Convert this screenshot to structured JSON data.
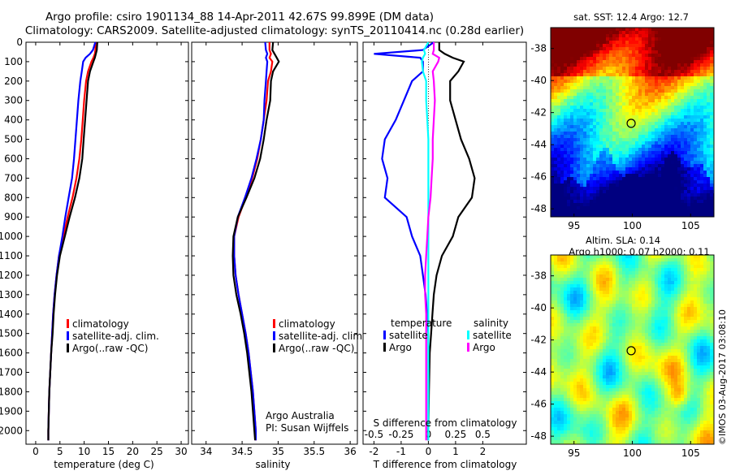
{
  "title": {
    "line1": "Argo profile: csiro 1901134_88 14-Apr-2011 42.67S 99.899E (DM data)",
    "line2": "Climatology: CARS2009. Satellite-adjusted climatology: synTS_20110414.nc (0.28d earlier)"
  },
  "chart_data": [
    {
      "type": "line",
      "id": "temperature",
      "xlabel": "temperature (deg C)",
      "ylabel": "",
      "xlim": [
        -2,
        31.5
      ],
      "ylim": [
        2070,
        0
      ],
      "xticks": [
        0,
        5,
        10,
        15,
        20,
        25,
        30
      ],
      "yticks": [
        0,
        100,
        200,
        300,
        400,
        500,
        600,
        700,
        800,
        900,
        1000,
        1100,
        1200,
        1300,
        1400,
        1500,
        1600,
        1700,
        1800,
        1900,
        2000
      ],
      "depth": [
        0,
        40,
        60,
        80,
        100,
        150,
        200,
        300,
        400,
        500,
        600,
        700,
        800,
        900,
        1000,
        1100,
        1200,
        1300,
        1400,
        1500,
        1600,
        1800,
        2000,
        2050
      ],
      "legend": [
        "climatology",
        "satellite-adj. clim.",
        "Argo(..raw -QC)"
      ],
      "legend_position": "lower-right",
      "series": [
        {
          "name": "climatology",
          "color": "#ff0000",
          "values": [
            12.4,
            12.3,
            12.2,
            11.9,
            11.5,
            10.8,
            10.4,
            10.0,
            9.7,
            9.4,
            9.0,
            8.4,
            7.6,
            6.6,
            5.7,
            4.8,
            4.3,
            3.9,
            3.6,
            3.4,
            3.2,
            2.8,
            2.6,
            2.6
          ]
        },
        {
          "name": "satellite-adj. clim.",
          "color": "#0000ff",
          "values": [
            12.3,
            11.8,
            11.2,
            10.3,
            9.8,
            9.5,
            9.2,
            8.8,
            8.5,
            8.2,
            7.9,
            7.5,
            6.8,
            6.1,
            5.5,
            4.8,
            4.3,
            3.9,
            3.6,
            3.4,
            3.2,
            2.8,
            2.6,
            2.6
          ]
        },
        {
          "name": "Argo(..raw -QC)",
          "color": "#000000",
          "values": [
            12.7,
            12.6,
            12.4,
            12.2,
            11.9,
            11.2,
            10.8,
            10.5,
            10.2,
            9.9,
            9.6,
            9.0,
            8.1,
            7.0,
            6.0,
            5.0,
            4.4,
            4.0,
            3.7,
            3.5,
            3.2,
            2.8,
            2.6,
            2.6
          ]
        }
      ]
    },
    {
      "type": "line",
      "id": "salinity",
      "xlabel": "salinity",
      "ylabel": "",
      "xlim": [
        33.8,
        36.1
      ],
      "ylim": [
        2070,
        0
      ],
      "xticks": [
        34,
        34.5,
        35,
        35.5,
        36
      ],
      "depth": [
        0,
        40,
        60,
        80,
        100,
        150,
        200,
        300,
        400,
        500,
        600,
        700,
        800,
        900,
        1000,
        1100,
        1200,
        1300,
        1400,
        1500,
        1600,
        1800,
        2000,
        2050
      ],
      "legend": [
        "climatology",
        "satellite-adj. clim.",
        "Argo(..raw -QC)"
      ],
      "legend_position": "lower-right",
      "annotation": [
        "Argo Australia",
        "PI: Susan Wijffels"
      ],
      "series": [
        {
          "name": "climatology",
          "color": "#ff0000",
          "values": [
            34.88,
            34.88,
            34.9,
            34.88,
            34.92,
            34.9,
            34.86,
            34.84,
            34.8,
            34.76,
            34.71,
            34.64,
            34.55,
            34.45,
            34.39,
            34.39,
            34.41,
            34.45,
            34.5,
            34.55,
            34.59,
            34.65,
            34.69,
            34.69
          ]
        },
        {
          "name": "satellite-adj. clim.",
          "color": "#0000ff",
          "values": [
            34.82,
            34.83,
            34.85,
            34.83,
            34.85,
            34.84,
            34.83,
            34.81,
            34.8,
            34.76,
            34.7,
            34.63,
            34.54,
            34.44,
            34.39,
            34.39,
            34.41,
            34.45,
            34.5,
            34.55,
            34.59,
            34.65,
            34.69,
            34.69
          ]
        },
        {
          "name": "Argo(..raw -QC)",
          "color": "#000000",
          "values": [
            34.93,
            34.92,
            34.95,
            34.98,
            35.01,
            34.93,
            34.9,
            34.89,
            34.84,
            34.8,
            34.75,
            34.67,
            34.56,
            34.44,
            34.38,
            34.37,
            34.38,
            34.42,
            34.48,
            34.53,
            34.57,
            34.63,
            34.67,
            34.68
          ]
        }
      ]
    },
    {
      "type": "line",
      "id": "difference",
      "xlabel": "T difference from climatology",
      "xlabel_top": "S difference from climatology",
      "xlim": [
        -2.4,
        3.6
      ],
      "ylim": [
        2070,
        0
      ],
      "xticks": [
        -2,
        -1,
        0,
        1,
        2
      ],
      "sticks": [
        "-0.5",
        "-0.25",
        "0",
        "0.25",
        "0.5"
      ],
      "depth": [
        0,
        40,
        60,
        80,
        100,
        150,
        200,
        300,
        400,
        500,
        600,
        700,
        800,
        900,
        1000,
        1100,
        1200,
        1300,
        1400,
        1500,
        1600,
        1800,
        2000,
        2050
      ],
      "legend_groups": [
        {
          "title": "temperature",
          "items": [
            "satellite",
            "Argo"
          ]
        },
        {
          "title": "salinity",
          "items": [
            "satellite",
            "Argo"
          ]
        }
      ],
      "legend_position": "lower-right",
      "series": [
        {
          "name": "satellite",
          "group": "temperature",
          "color": "#0000ff",
          "values": [
            0.2,
            -0.2,
            -2.0,
            -0.3,
            -0.2,
            -0.2,
            -0.6,
            -0.9,
            -1.2,
            -1.6,
            -1.7,
            -1.5,
            -1.6,
            -0.8,
            -0.6,
            -0.3,
            -0.2,
            -0.1,
            -0.05,
            0,
            0,
            0,
            0,
            0
          ]
        },
        {
          "name": "Argo",
          "group": "temperature",
          "color": "#000000",
          "values": [
            0.4,
            0.4,
            0.6,
            0.9,
            1.3,
            1.1,
            0.8,
            0.8,
            1.0,
            1.2,
            1.5,
            1.7,
            1.6,
            1.1,
            0.9,
            0.5,
            0.3,
            0.2,
            0.15,
            0.1,
            0.05,
            0.02,
            0.0,
            0.0
          ]
        },
        {
          "name": "satellite",
          "group": "salinity",
          "color": "#00ffff",
          "values": [
            0.0,
            -0.04,
            -0.03,
            -0.05,
            -0.06,
            -0.05,
            -0.02,
            -0.02,
            -0.01,
            0,
            0,
            0,
            0,
            0,
            0,
            0,
            0,
            0,
            0,
            0,
            0,
            0,
            0,
            0
          ]
        },
        {
          "name": "Argo",
          "group": "salinity",
          "color": "#ff00ff",
          "values": [
            0.05,
            0.05,
            0.04,
            0.1,
            0.09,
            0.04,
            0.05,
            0.06,
            0.05,
            0.04,
            0.04,
            0.03,
            0.02,
            0.0,
            -0.01,
            -0.02,
            -0.03,
            -0.03,
            -0.02,
            -0.02,
            -0.02,
            -0.02,
            -0.02,
            -0.02
          ]
        }
      ]
    },
    {
      "type": "heatmap",
      "id": "sst-map",
      "title": "sat. SST: 12.4  Argo: 12.7",
      "xlim": [
        93,
        107
      ],
      "ylim": [
        -48.5,
        -36.7
      ],
      "xticks": [
        95,
        100,
        105
      ],
      "yticks": [
        -38,
        -40,
        -42,
        -44,
        -46,
        -48
      ],
      "marker": {
        "x": 99.9,
        "y": -42.67
      }
    },
    {
      "type": "heatmap",
      "id": "sla-map",
      "title": "Altim. SLA: 0.14",
      "subtitle": "Argo h1000: 0.07 h2000: 0.11",
      "xlim": [
        93,
        107
      ],
      "ylim": [
        -48.5,
        -36.7
      ],
      "xticks": [
        95,
        100,
        105
      ],
      "yticks": [
        -38,
        -40,
        -42,
        -44,
        -46,
        -48
      ],
      "marker": {
        "x": 99.9,
        "y": -42.67
      }
    }
  ],
  "credit": "©IMOS 03-Aug-2017 03:08:10"
}
